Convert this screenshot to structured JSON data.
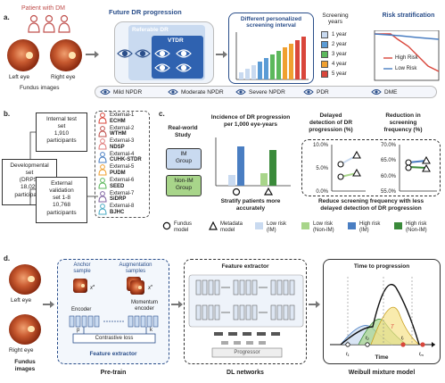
{
  "panel_a": {
    "letter": "a.",
    "patient_label": "Patient with DM",
    "left_eye": "Left eye",
    "right_eye": "Right eye",
    "fundus_images": "Fundus images",
    "future_dr": "Future DR progression",
    "referable_dr": "Referable DR",
    "vtdr": "VTDR",
    "interval_title": "Different personalized screening interval",
    "screening_years_title": "Screening years",
    "years": [
      {
        "label": "1 year",
        "color": "#c9daf0"
      },
      {
        "label": "2 year",
        "color": "#5a9bd5"
      },
      {
        "label": "3 year",
        "color": "#5cb85c"
      },
      {
        "label": "4 year",
        "color": "#f0a030"
      },
      {
        "label": "5 year",
        "color": "#d9463b"
      }
    ],
    "risk_title": "Risk stratification",
    "high_risk": "High Risk",
    "low_risk": "Low Risk",
    "stages": [
      "Mild NPDR",
      "Moderate NPDR",
      "Severe NPDR",
      "PDR",
      "DME"
    ]
  },
  "panel_b": {
    "letter": "b.",
    "internal": "Internal test set 1,910 participants",
    "internal_lines": [
      "Internal test",
      "set",
      "1,910",
      "participants"
    ],
    "dev_lines": [
      "Developmental",
      "set",
      "(DRPS)",
      "18,025",
      "participants"
    ],
    "ext_lines": [
      "External",
      "validation",
      "set 1-8",
      "10,768",
      "participants"
    ],
    "externals": [
      {
        "name": "External-1",
        "code": "ECHM",
        "color": "#d9463b"
      },
      {
        "name": "External-2",
        "code": "WTHM",
        "color": "#c0504d"
      },
      {
        "name": "External-3",
        "code": "NDSP",
        "color": "#e07b7b"
      },
      {
        "name": "External-4",
        "code": "CUHK-STDR",
        "color": "#4a7ec2"
      },
      {
        "name": "External-5",
        "code": "PUDM",
        "color": "#f0a030"
      },
      {
        "name": "External-6",
        "code": "SEED",
        "color": "#5cb85c"
      },
      {
        "name": "External-7",
        "code": "SiDRP",
        "color": "#8064a2"
      },
      {
        "name": "External-8",
        "code": "BJHC",
        "color": "#4bacc6"
      }
    ]
  },
  "panel_c": {
    "letter": "c.",
    "rw_lines": [
      "Real-world",
      "Study"
    ],
    "im_lines": [
      "IM",
      "Group"
    ],
    "nonim_lines": [
      "Non-IM",
      "Group"
    ],
    "incidence_lines": [
      "Incidence of DR progression",
      "per 1,000 eye-years"
    ],
    "stratify_lines": [
      "Stratify patients more",
      "accurately"
    ],
    "delayed_lines": [
      "Delayed",
      "detection of DR",
      "progression (%)"
    ],
    "reduction_lines": [
      "Reduction in",
      "screening",
      "frequency (%)"
    ],
    "delayed_ticks": [
      "10.0%",
      "5.0%",
      "0.0%"
    ],
    "reduction_ticks": [
      "70.0%",
      "65.0%",
      "60.0%",
      "55.0%"
    ],
    "reduce_lines": [
      "Reduce screening frequency with less",
      "delayed detection of DR progression"
    ],
    "legend": [
      {
        "lines": [
          "Fundus",
          "model"
        ],
        "kind": "circle"
      },
      {
        "lines": [
          "Metadata",
          "model"
        ],
        "kind": "triangle"
      },
      {
        "lines": [
          "Low risk",
          "(IM)"
        ],
        "kind": "swatch",
        "color": "#c9daf0"
      },
      {
        "lines": [
          "Low risk",
          "(Non-IM)"
        ],
        "kind": "swatch",
        "color": "#a8d58a"
      },
      {
        "lines": [
          "High risk",
          "(IM)"
        ],
        "kind": "swatch",
        "color": "#4a7ec2"
      },
      {
        "lines": [
          "High risk",
          "(Non-IM)"
        ],
        "kind": "swatch",
        "color": "#3a8a3a"
      }
    ]
  },
  "panel_d": {
    "letter": "d.",
    "left_eye": "Left eye",
    "right_eye": "Right eye",
    "fundus_lines": [
      "Fundus",
      "images"
    ],
    "pretrain": "Pre-train",
    "anchor_lines": [
      "Anchor",
      "sample"
    ],
    "aug_lines": [
      "Augmentation",
      "samples"
    ],
    "encoder": "Encoder",
    "momentum_lines": [
      "Momentum",
      "encoder"
    ],
    "p": "p",
    "k": "k",
    "contrastive": "Contrastive loss",
    "feature_extractor": "Feature extractor",
    "fe_title": "Feature extractor",
    "dl_networks": "DL networks",
    "progressor": "Progressor",
    "ttp": "Time to progression",
    "time": "Time",
    "weibull": "Weibull mixture model",
    "xa": "x",
    "xa_sup": "a",
    "xn_sup": "n"
  }
}
